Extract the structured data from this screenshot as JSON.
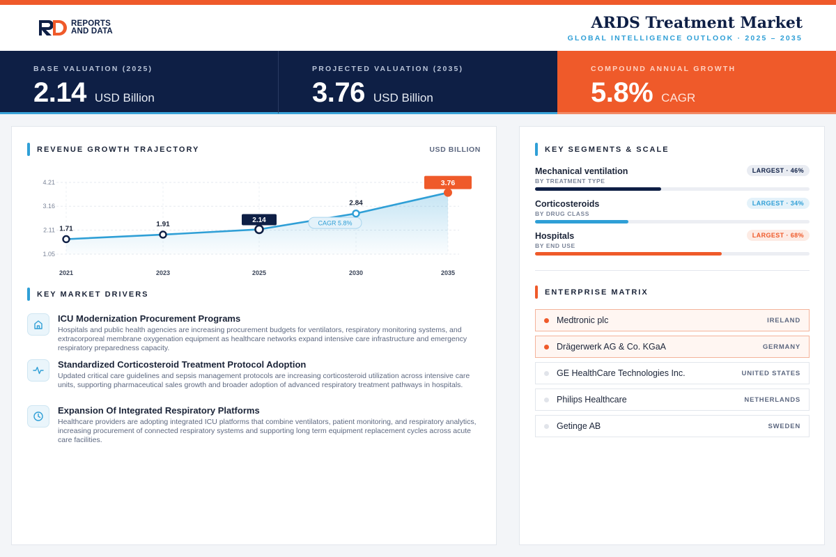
{
  "brand": {
    "line1": "REPORTS",
    "line2": "AND DATA",
    "colors": {
      "navy": "#0e1f45",
      "orange": "#ef5a2a",
      "blue": "#2f9fd6"
    }
  },
  "header": {
    "title": "ARDS Treatment Market",
    "subtitle": "GLOBAL INTELLIGENCE OUTLOOK  ·  2025 – 2035"
  },
  "kpis": [
    {
      "label": "BASE VALUATION (2025)",
      "value": "2.14",
      "unit": "USD Billion"
    },
    {
      "label": "PROJECTED VALUATION (2035)",
      "value": "3.76",
      "unit": "USD Billion"
    },
    {
      "label": "COMPOUND ANNUAL GROWTH",
      "value": "5.8%",
      "unit": "CAGR"
    }
  ],
  "chart_section": {
    "title": "REVENUE GROWTH TRAJECTORY",
    "units": "USD BILLION"
  },
  "chart_data": {
    "type": "area",
    "categories": [
      "2021",
      "2023",
      "2025",
      "2030",
      "2035"
    ],
    "values": [
      1.71,
      1.91,
      2.14,
      2.84,
      3.76
    ],
    "value_labels": [
      "1.71",
      "1.91",
      "2.14",
      "2.84",
      "3.76"
    ],
    "y_ticks": [
      "4.21",
      "3.16",
      "2.11",
      "1.05"
    ],
    "ylim": [
      1.05,
      4.21
    ],
    "annotation": "CAGR 5.8%",
    "grid": true,
    "title": "",
    "xlabel": "",
    "ylabel": ""
  },
  "drivers_section": {
    "title": "KEY MARKET DRIVERS"
  },
  "drivers": [
    {
      "icon": "building-icon",
      "title": "ICU Modernization Procurement Programs",
      "desc": "Hospitals and public health agencies are increasing procurement budgets for ventilators, respiratory monitoring systems, and extracorporeal membrane oxygenation equipment as healthcare networks expand intensive care infrastructure and emergency respiratory preparedness capacity."
    },
    {
      "icon": "pulse-icon",
      "title": "Standardized Corticosteroid Treatment Protocol Adoption",
      "desc": "Updated critical care guidelines and sepsis management protocols are increasing corticosteroid utilization across intensive care units, supporting pharmaceutical sales growth and broader adoption of advanced respiratory treatment pathways in hospitals."
    },
    {
      "icon": "clock-icon",
      "title": "Expansion Of Integrated Respiratory Platforms",
      "desc": "Healthcare providers are adopting integrated ICU platforms that combine ventilators, patient monitoring, and respiratory analytics, increasing procurement of connected respiratory systems and supporting long term equipment replacement cycles across acute care facilities."
    }
  ],
  "segments_section": {
    "title": "KEY SEGMENTS & SCALE"
  },
  "segments": [
    {
      "name": "Mechanical ventilation",
      "sub": "BY TREATMENT TYPE",
      "badge": "LARGEST · 46%",
      "share": 0.46,
      "color": "#0e1f45"
    },
    {
      "name": "Corticosteroids",
      "sub": "BY DRUG CLASS",
      "badge": "LARGEST · 34%",
      "share": 0.34,
      "color": "#2f9fd6"
    },
    {
      "name": "Hospitals",
      "sub": "BY END USE",
      "badge": "LARGEST · 68%",
      "share": 0.68,
      "color": "#ef5a2a"
    }
  ],
  "matrix_section": {
    "title": "ENTERPRISE MATRIX"
  },
  "enterprises": [
    {
      "name": "Medtronic plc",
      "country": "IRELAND",
      "highlight": true
    },
    {
      "name": "Drägerwerk AG & Co. KGaA",
      "country": "GERMANY",
      "highlight": true
    },
    {
      "name": "GE HealthCare Technologies Inc.",
      "country": "UNITED STATES",
      "highlight": false
    },
    {
      "name": "Philips Healthcare",
      "country": "NETHERLANDS",
      "highlight": false
    },
    {
      "name": "Getinge AB",
      "country": "SWEDEN",
      "highlight": false
    }
  ]
}
